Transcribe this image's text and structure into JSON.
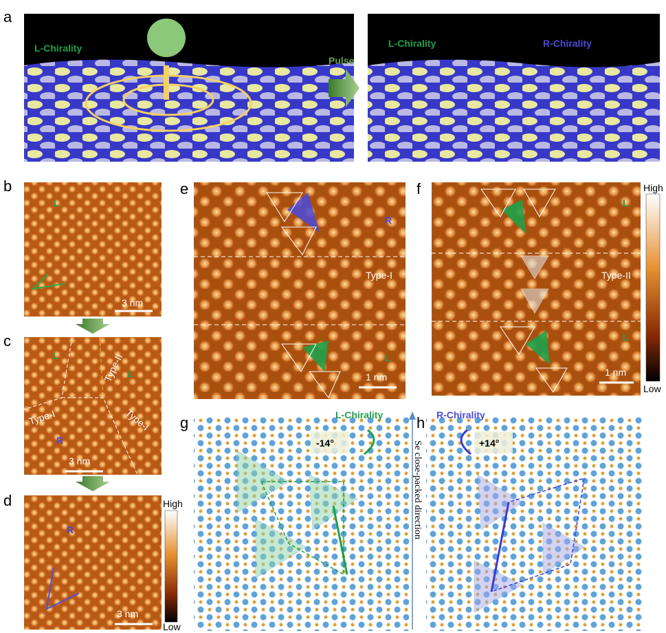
{
  "panels": {
    "a": {
      "label": "a",
      "left_chirality": "L-Chirality",
      "pulse": "Pulse",
      "right_left_chirality": "L-Chirality",
      "right_right_chirality": "R-Chirality"
    },
    "b": {
      "label": "b",
      "domain": "L",
      "scale": "3 nm"
    },
    "c": {
      "label": "c",
      "domain_top": "L",
      "type_ii": "Type-II",
      "domain_right": "L",
      "type_i_left": "Type-I",
      "type_i_right": "Type-I",
      "domain_bottom": "R",
      "scale": "3 nm"
    },
    "d": {
      "label": "d",
      "domain": "R",
      "scale": "3 nm",
      "high": "High",
      "low": "Low"
    },
    "e": {
      "label": "e",
      "domain_top": "R",
      "boundary": "Type-I",
      "domain_bottom": "L",
      "scale": "1 nm"
    },
    "f": {
      "label": "f",
      "domain_top": "L",
      "boundary": "Type-II",
      "domain_bottom": "L",
      "scale": "1 nm",
      "high": "High",
      "low": "Low"
    },
    "g": {
      "label": "g",
      "chirality": "L-Chirality",
      "angle": "-14°"
    },
    "h": {
      "label": "h",
      "chirality": "R-Chirality",
      "angle": "+14°"
    },
    "axis_label": "Se close-packed direction"
  }
}
